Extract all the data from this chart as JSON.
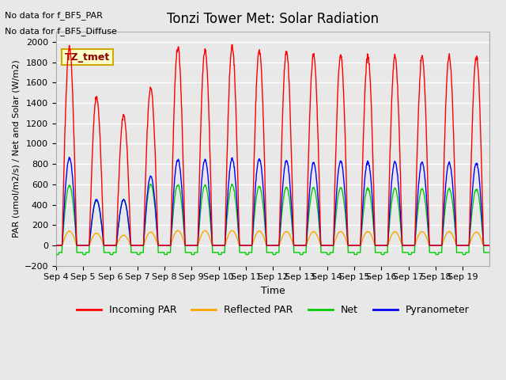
{
  "title": "Tonzi Tower Met: Solar Radiation",
  "ylabel": "PAR (umol/m2/s) / Net and Solar (W/m2)",
  "xlabel": "Time",
  "annotation1": "No data for f_BF5_PAR",
  "annotation2": "No data for f_BF5_Diffuse",
  "legend_label": "TZ_tmet",
  "ylim": [
    -200,
    2100
  ],
  "yticks": [
    -200,
    0,
    200,
    400,
    600,
    800,
    1000,
    1200,
    1400,
    1600,
    1800,
    2000
  ],
  "xtick_labels": [
    "Sep 4",
    "Sep 5",
    "Sep 6",
    "Sep 7",
    "Sep 8",
    "Sep 9",
    "Sep 10",
    "Sep 11",
    "Sep 12",
    "Sep 13",
    "Sep 14",
    "Sep 15",
    "Sep 16",
    "Sep 17",
    "Sep 18",
    "Sep 19"
  ],
  "color_incoming": "#ff0000",
  "color_reflected": "#ffa500",
  "color_net": "#00cc00",
  "color_pyranometer": "#0000ff",
  "legend_incoming": "Incoming PAR",
  "legend_reflected": "Reflected PAR",
  "legend_net": "Net",
  "legend_pyranometer": "Pyranometer",
  "bg_color": "#e8e8e8",
  "plot_bg_color": "#e8e8e8",
  "grid_color": "#ffffff",
  "n_days": 16,
  "day_start": 4,
  "day_peaks_incoming": [
    1950,
    1460,
    1280,
    1550,
    1950,
    1930,
    1950,
    1920,
    1900,
    1870,
    1860,
    1860,
    1860,
    1855,
    1855,
    1850
  ],
  "day_peaks_pyranometer": [
    860,
    450,
    450,
    680,
    845,
    845,
    850,
    850,
    830,
    810,
    825,
    820,
    820,
    815,
    810,
    805
  ],
  "day_peaks_net": [
    590,
    440,
    450,
    600,
    595,
    595,
    595,
    580,
    570,
    565,
    565,
    560,
    560,
    555,
    555,
    550
  ],
  "day_peaks_reflected": [
    140,
    120,
    100,
    130,
    145,
    145,
    145,
    140,
    135,
    135,
    135,
    135,
    135,
    135,
    135,
    130
  ]
}
